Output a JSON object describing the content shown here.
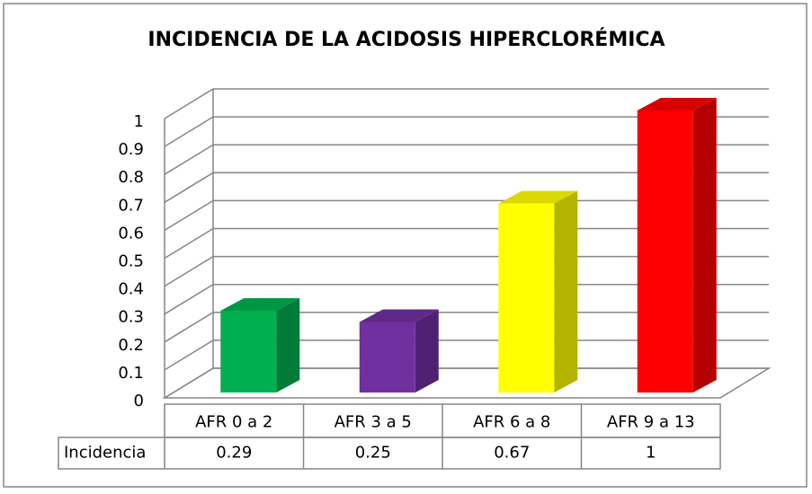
{
  "chart_data": {
    "type": "bar3d",
    "title": "INCIDENCIA DE LA ACIDOSIS HIPERCLORÉMICA",
    "categories": [
      "AFR 0 a 2",
      "AFR 3 a 5",
      "AFR 6 a 8",
      "AFR 9 a 13"
    ],
    "series": [
      {
        "name": "Incidencia",
        "values": [
          0.29,
          0.25,
          0.67,
          1
        ],
        "colors": [
          "#00b050",
          "#7030a0",
          "#ffff00",
          "#ff0000"
        ]
      }
    ],
    "ylim": [
      0,
      1
    ],
    "yticks": [
      0,
      0.1,
      0.2,
      0.3,
      0.4,
      0.5,
      0.6,
      0.7,
      0.8,
      0.9,
      1
    ],
    "grid": true,
    "data_table": true
  }
}
